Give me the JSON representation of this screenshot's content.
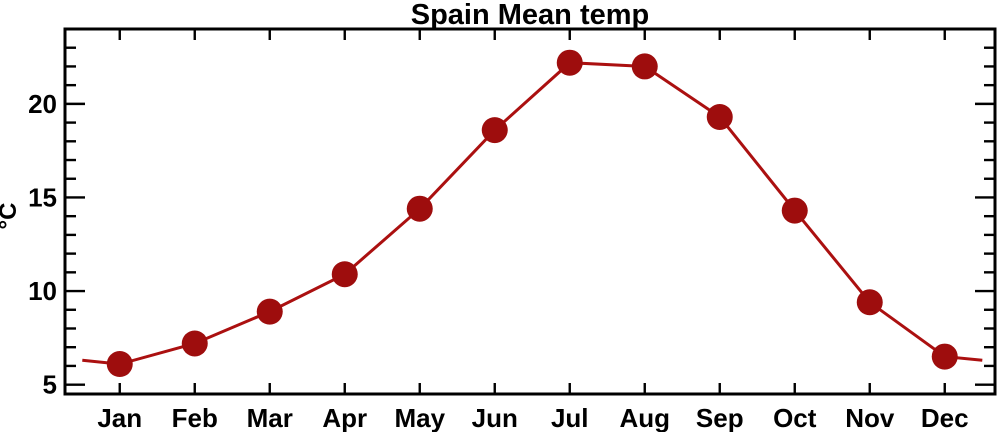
{
  "chart_data": {
    "type": "line",
    "title": "Spain Mean temp",
    "xlabel": "",
    "ylabel": "°C",
    "categories": [
      "Jan",
      "Feb",
      "Mar",
      "Apr",
      "May",
      "Jun",
      "Jul",
      "Aug",
      "Sep",
      "Oct",
      "Nov",
      "Dec"
    ],
    "values": [
      6.1,
      7.2,
      8.9,
      10.9,
      14.4,
      18.6,
      22.2,
      22.0,
      19.3,
      14.3,
      9.4,
      6.5
    ],
    "edge_points": [
      {
        "x": 0.5,
        "value": 6.3
      },
      {
        "x": 12.5,
        "value": 6.3
      }
    ],
    "xlim": [
      0.27,
      12.67
    ],
    "ylim": [
      4.5,
      24.0
    ],
    "yticks_major": [
      5,
      10,
      15,
      20
    ],
    "ytick_minor_step": 1,
    "grid": false,
    "legend": null,
    "marker": "filled-circle",
    "colors": {
      "line": "#ab1010",
      "marker": "#9e0d0d",
      "axis": "#000000",
      "text": "#000000",
      "background": "#ffffff"
    }
  }
}
